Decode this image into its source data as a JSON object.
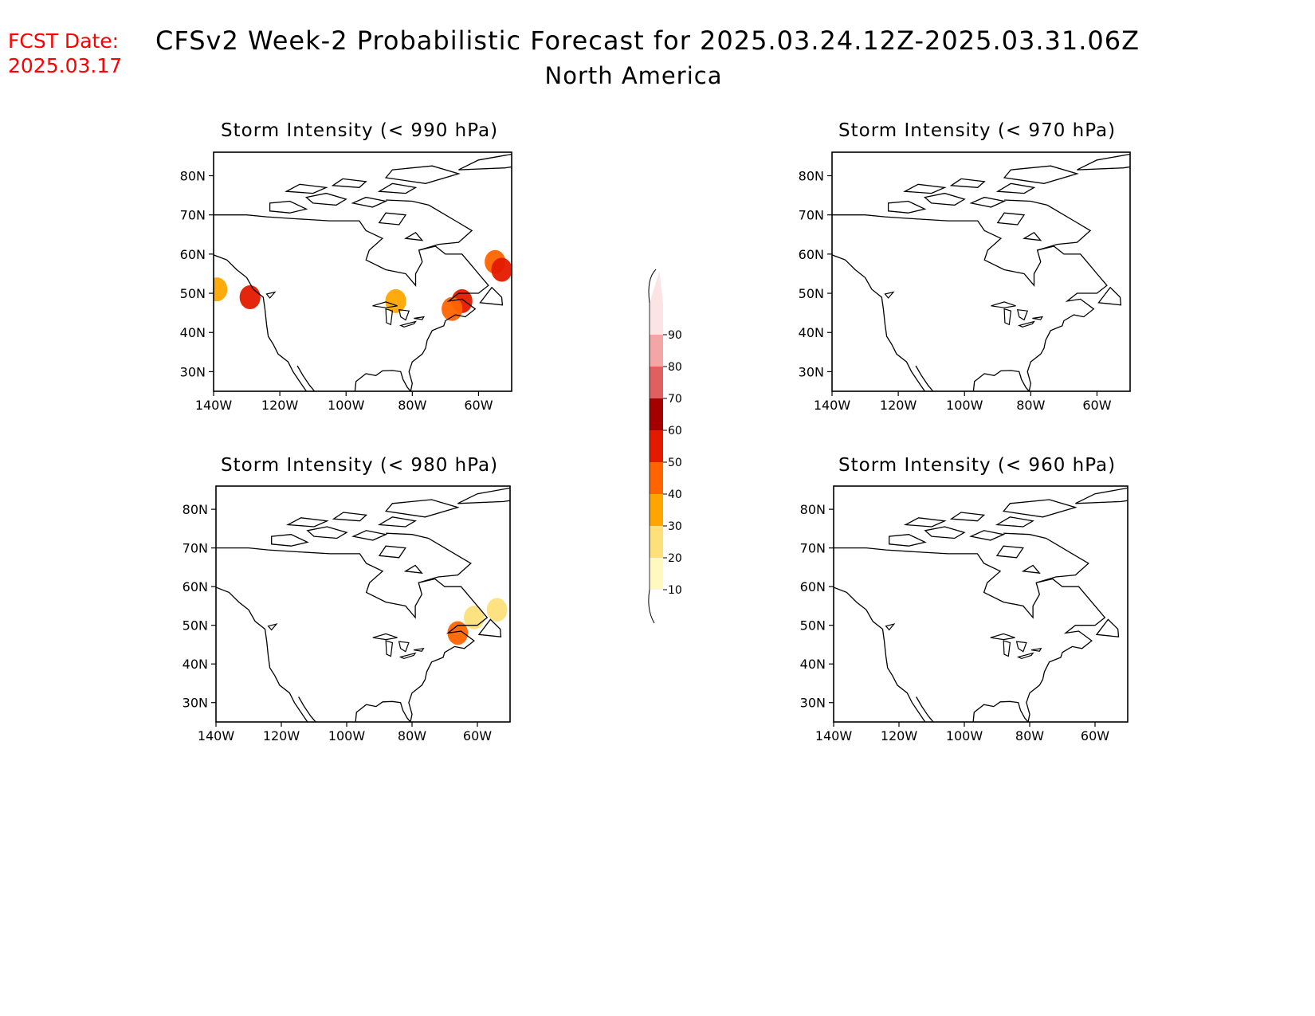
{
  "header": {
    "fcst_date_label": "FCST Date:",
    "fcst_date_value": "2025.03.17",
    "title": "CFSv2 Week-2 Probabilistic Forecast for 2025.03.24.12Z-2025.03.31.06Z",
    "subtitle": "North America"
  },
  "panels": [
    {
      "title": "Storm Intensity (< 990 hPa)"
    },
    {
      "title": "Storm Intensity (< 970 hPa)"
    },
    {
      "title": "Storm Intensity (< 980 hPa)"
    },
    {
      "title": "Storm Intensity (< 960 hPa)"
    }
  ],
  "axes": {
    "lat_labels": [
      "80N",
      "70N",
      "60N",
      "50N",
      "40N",
      "30N"
    ],
    "lat_values": [
      80,
      70,
      60,
      50,
      40,
      30
    ],
    "lon_labels": [
      "140W",
      "120W",
      "100W",
      "80W",
      "60W"
    ],
    "lon_values": [
      -140,
      -120,
      -100,
      -80,
      -60
    ],
    "lat_range": [
      25,
      86
    ],
    "lon_range": [
      -140,
      -50
    ]
  },
  "colorbar": {
    "levels": [
      "10",
      "20",
      "30",
      "40",
      "50",
      "60",
      "70",
      "80",
      "90"
    ],
    "colors": [
      "#fff9c0",
      "#fde07a",
      "#ffa500",
      "#ff6400",
      "#e41a00",
      "#a50000",
      "#e06060",
      "#f4a6a6",
      "#fde4e4"
    ]
  },
  "chart_data": {
    "type": "heatmap",
    "units": "probability (%)",
    "regions": [
      {
        "panel": 0,
        "lat": 58,
        "lon": -55,
        "value": 40
      },
      {
        "panel": 0,
        "lat": 56,
        "lon": -53,
        "value": 50
      },
      {
        "panel": 0,
        "lat": 48,
        "lon": -65,
        "value": 50
      },
      {
        "panel": 0,
        "lat": 46,
        "lon": -68,
        "value": 40
      },
      {
        "panel": 0,
        "lat": 51,
        "lon": -139,
        "value": 30
      },
      {
        "panel": 0,
        "lat": 49,
        "lon": -129,
        "value": 50
      },
      {
        "panel": 0,
        "lat": 48,
        "lon": -85,
        "value": 30
      },
      {
        "panel": 2,
        "lat": 52,
        "lon": -61,
        "value": 20
      },
      {
        "panel": 2,
        "lat": 54,
        "lon": -54,
        "value": 20
      },
      {
        "panel": 2,
        "lat": 48,
        "lon": -66,
        "value": 40
      }
    ]
  }
}
